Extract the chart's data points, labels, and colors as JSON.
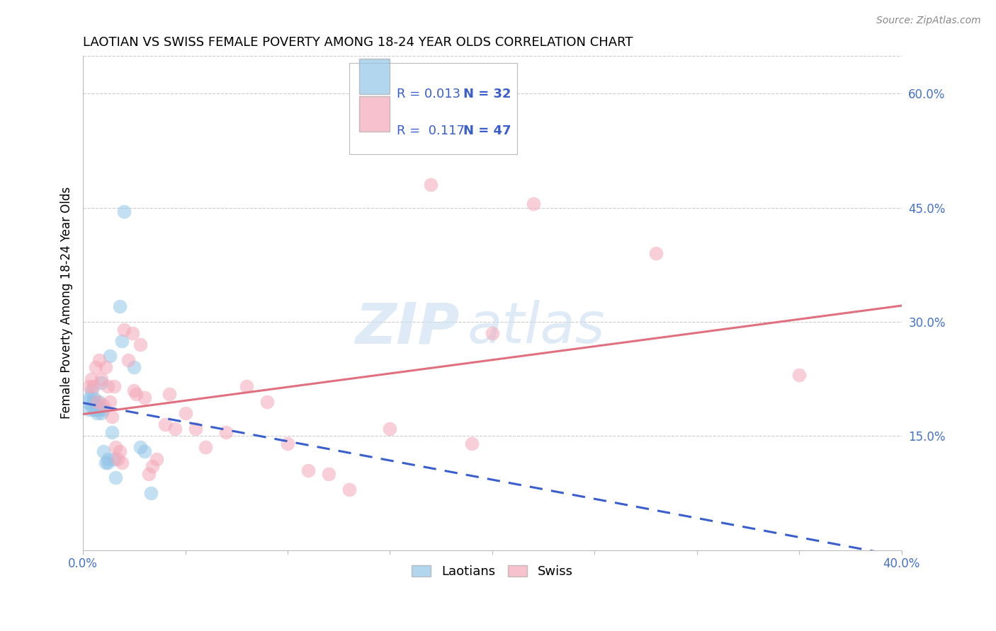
{
  "title": "LAOTIAN VS SWISS FEMALE POVERTY AMONG 18-24 YEAR OLDS CORRELATION CHART",
  "source": "Source: ZipAtlas.com",
  "ylabel": "Female Poverty Among 18-24 Year Olds",
  "xlim": [
    0.0,
    0.4
  ],
  "ylim": [
    0.0,
    0.65
  ],
  "xticks": [
    0.0,
    0.05,
    0.1,
    0.15,
    0.2,
    0.25,
    0.3,
    0.35,
    0.4
  ],
  "yticks_right": [
    0.15,
    0.3,
    0.45,
    0.6
  ],
  "ytick_right_labels": [
    "15.0%",
    "30.0%",
    "45.0%",
    "60.0%"
  ],
  "laotian_color": "#92C5E8",
  "swiss_color": "#F4A8B8",
  "laotian_line_color": "#3A5FCD",
  "swiss_line_color": "#E07080",
  "legend_r_laotian": "0.013",
  "legend_n_laotian": "32",
  "legend_r_swiss": "0.117",
  "legend_n_swiss": "47",
  "watermark_zip": "ZIP",
  "watermark_atlas": "atlas",
  "background_color": "#FFFFFF",
  "grid_color": "#CCCCCC",
  "laotian_x": [
    0.002,
    0.003,
    0.003,
    0.004,
    0.004,
    0.005,
    0.005,
    0.005,
    0.006,
    0.006,
    0.007,
    0.007,
    0.008,
    0.008,
    0.009,
    0.009,
    0.01,
    0.01,
    0.011,
    0.012,
    0.012,
    0.013,
    0.014,
    0.015,
    0.016,
    0.018,
    0.019,
    0.02,
    0.025,
    0.028,
    0.03,
    0.033
  ],
  "laotian_y": [
    0.195,
    0.2,
    0.185,
    0.19,
    0.21,
    0.185,
    0.2,
    0.195,
    0.185,
    0.195,
    0.19,
    0.18,
    0.185,
    0.195,
    0.22,
    0.18,
    0.185,
    0.13,
    0.115,
    0.115,
    0.12,
    0.255,
    0.155,
    0.12,
    0.095,
    0.32,
    0.275,
    0.445,
    0.24,
    0.135,
    0.13,
    0.075
  ],
  "swiss_x": [
    0.003,
    0.004,
    0.005,
    0.006,
    0.007,
    0.008,
    0.009,
    0.01,
    0.011,
    0.012,
    0.013,
    0.014,
    0.015,
    0.016,
    0.017,
    0.018,
    0.019,
    0.02,
    0.022,
    0.024,
    0.025,
    0.026,
    0.028,
    0.03,
    0.032,
    0.034,
    0.036,
    0.04,
    0.042,
    0.045,
    0.05,
    0.055,
    0.06,
    0.07,
    0.08,
    0.09,
    0.1,
    0.11,
    0.12,
    0.13,
    0.15,
    0.17,
    0.19,
    0.2,
    0.22,
    0.28,
    0.35
  ],
  "swiss_y": [
    0.215,
    0.225,
    0.215,
    0.24,
    0.195,
    0.25,
    0.225,
    0.19,
    0.24,
    0.215,
    0.195,
    0.175,
    0.215,
    0.135,
    0.12,
    0.13,
    0.115,
    0.29,
    0.25,
    0.285,
    0.21,
    0.205,
    0.27,
    0.2,
    0.1,
    0.11,
    0.12,
    0.165,
    0.205,
    0.16,
    0.18,
    0.16,
    0.135,
    0.155,
    0.215,
    0.195,
    0.14,
    0.105,
    0.1,
    0.08,
    0.16,
    0.48,
    0.14,
    0.285,
    0.455,
    0.39,
    0.23
  ]
}
